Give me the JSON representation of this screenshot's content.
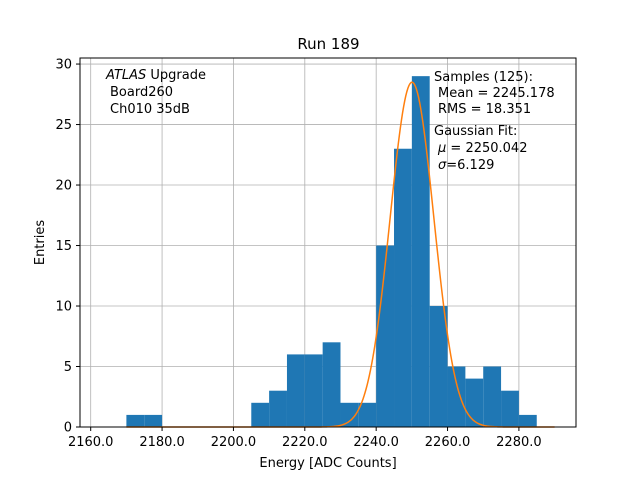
{
  "chart_data": {
    "type": "bar",
    "title": "Run 189",
    "xlabel": "Energy [ADC Counts]",
    "ylabel": "Entries",
    "xlim": [
      2157,
      2296
    ],
    "ylim": [
      0,
      30.5
    ],
    "xticks": [
      2160,
      2180,
      2200,
      2220,
      2240,
      2260,
      2280
    ],
    "xtick_labels": [
      "2160.0",
      "2180.0",
      "2200.0",
      "2220.0",
      "2240.0",
      "2260.0",
      "2280.0"
    ],
    "yticks": [
      0,
      5,
      10,
      15,
      20,
      25,
      30
    ],
    "ytick_labels": [
      "0",
      "5",
      "10",
      "15",
      "20",
      "25",
      "30"
    ],
    "grid": true,
    "bar_color": "#1f77b4",
    "fit_color": "#ff7f0e",
    "bins": [
      {
        "x0": 2170,
        "x1": 2175,
        "count": 1
      },
      {
        "x0": 2175,
        "x1": 2180,
        "count": 1
      },
      {
        "x0": 2205,
        "x1": 2210,
        "count": 2
      },
      {
        "x0": 2210,
        "x1": 2215,
        "count": 3
      },
      {
        "x0": 2215,
        "x1": 2220,
        "count": 6
      },
      {
        "x0": 2220,
        "x1": 2225,
        "count": 6
      },
      {
        "x0": 2225,
        "x1": 2230,
        "count": 7
      },
      {
        "x0": 2230,
        "x1": 2235,
        "count": 2
      },
      {
        "x0": 2235,
        "x1": 2240,
        "count": 2
      },
      {
        "x0": 2240,
        "x1": 2245,
        "count": 15
      },
      {
        "x0": 2245,
        "x1": 2250,
        "count": 23
      },
      {
        "x0": 2250,
        "x1": 2255,
        "count": 29
      },
      {
        "x0": 2255,
        "x1": 2260,
        "count": 10
      },
      {
        "x0": 2260,
        "x1": 2265,
        "count": 5
      },
      {
        "x0": 2265,
        "x1": 2270,
        "count": 4
      },
      {
        "x0": 2270,
        "x1": 2275,
        "count": 5
      },
      {
        "x0": 2275,
        "x1": 2280,
        "count": 3
      },
      {
        "x0": 2280,
        "x1": 2285,
        "count": 1
      }
    ],
    "gaussian_fit": {
      "mu": 2250.042,
      "sigma": 6.129,
      "amplitude": 28.5,
      "x_range": [
        2170,
        2290
      ]
    },
    "stats": {
      "samples_label": "Samples (125):",
      "mean_label": "Mean = 2245.178",
      "rms_label": "RMS = 18.351",
      "fit_label": "Gaussian Fit:",
      "mu_label": " = 2250.042",
      "sigma_label": "=6.129"
    },
    "info": {
      "experiment_italic": "ATLAS",
      "experiment_suffix": " Upgrade",
      "board": "Board260",
      "channel": "Ch010 35dB"
    }
  }
}
